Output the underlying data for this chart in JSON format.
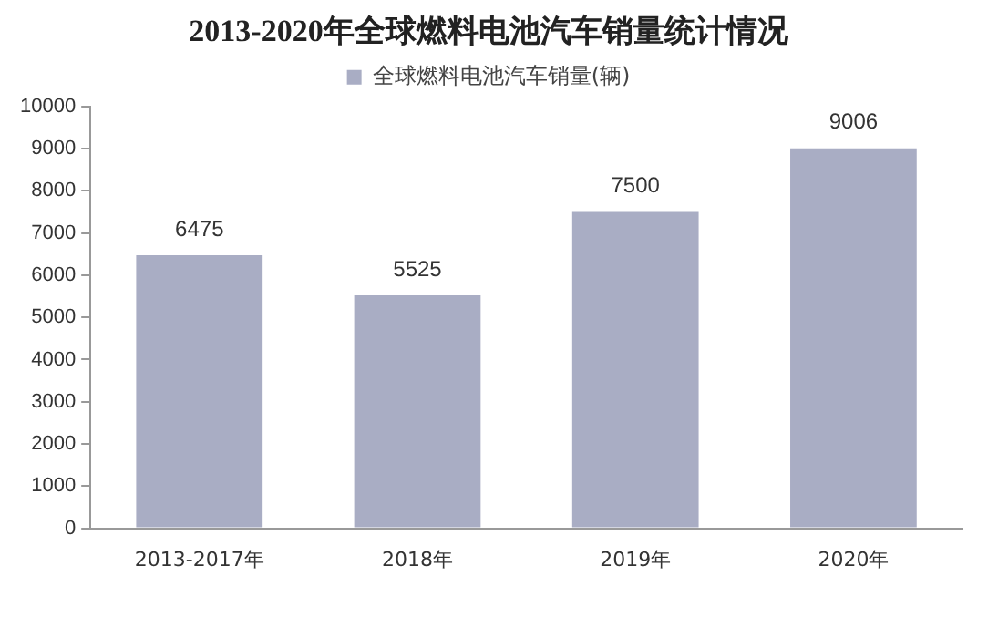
{
  "chart_data": {
    "type": "bar",
    "title": "2013-2020年全球燃料电池汽车销量统计情况",
    "categories": [
      "2013-2017年",
      "2018年",
      "2019年",
      "2020年"
    ],
    "series": [
      {
        "name": "全球燃料电池汽车销量(辆)",
        "color": "#a9adc4",
        "values": [
          6475,
          5525,
          7500,
          9006
        ]
      }
    ],
    "ylim": [
      0,
      10000
    ],
    "yticks": [
      0,
      1000,
      2000,
      3000,
      4000,
      5000,
      6000,
      7000,
      8000,
      9000,
      10000
    ],
    "grid": false,
    "legend": "top",
    "data_labels": true
  }
}
